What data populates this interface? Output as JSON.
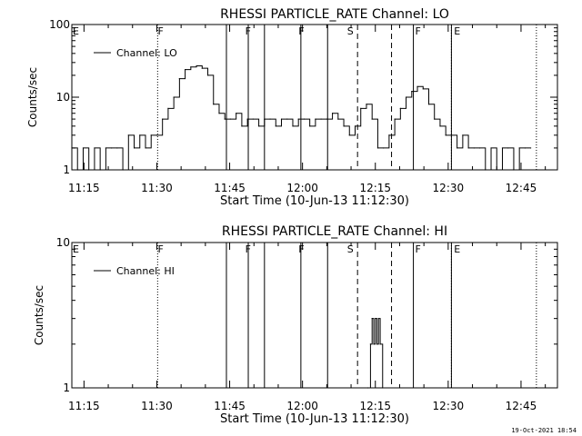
{
  "chart_data": [
    {
      "type": "line",
      "title": "RHESSI PARTICLE_RATE Channel: LO",
      "xlabel": "Start Time (10-Jun-13 11:12:30)",
      "ylabel": "Counts/sec",
      "yscale": "log",
      "ylim": [
        1,
        100
      ],
      "xlim": [
        "11:12:30",
        "12:52:30"
      ],
      "xticks": [
        "11:15",
        "11:30",
        "11:45",
        "12:00",
        "12:15",
        "12:30",
        "12:45"
      ],
      "yticks": [
        "1",
        "10",
        "100"
      ],
      "legend": {
        "entries": [
          "Channel: LO"
        ],
        "placement": "top-left"
      },
      "series": [
        {
          "name": "Channel: LO",
          "x": [
            "11:12:30",
            "11:13:40",
            "11:14:50",
            "11:16:00",
            "11:17:10",
            "11:18:20",
            "11:19:30",
            "11:20:40",
            "11:21:50",
            "11:23:00",
            "11:24:10",
            "11:25:20",
            "11:26:30",
            "11:27:40",
            "11:28:50",
            "11:30:00",
            "11:31:10",
            "11:32:20",
            "11:33:30",
            "11:34:40",
            "11:35:50",
            "11:37:00",
            "11:38:10",
            "11:39:20",
            "11:40:30",
            "11:41:40",
            "11:42:50",
            "11:44:00",
            "11:45:10",
            "11:46:20",
            "11:47:30",
            "11:48:40",
            "11:49:50",
            "11:51:00",
            "11:52:10",
            "11:53:20",
            "11:54:30",
            "11:55:40",
            "11:56:50",
            "11:58:00",
            "11:59:10",
            "12:00:20",
            "12:01:30",
            "12:02:40",
            "12:03:50",
            "12:05:00",
            "12:06:10",
            "12:07:20",
            "12:08:30",
            "12:09:40",
            "12:10:50",
            "12:12:00",
            "12:13:10",
            "12:14:20",
            "12:15:30",
            "12:16:40",
            "12:17:50",
            "12:19:00",
            "12:20:10",
            "12:21:20",
            "12:22:30",
            "12:23:40",
            "12:24:50",
            "12:26:00",
            "12:27:10",
            "12:28:20",
            "12:29:30",
            "12:30:40",
            "12:31:50",
            "12:33:00",
            "12:34:10",
            "12:35:20",
            "12:36:30",
            "12:37:40",
            "12:38:50",
            "12:40:00",
            "12:41:10",
            "12:42:20",
            "12:43:30",
            "12:44:40",
            "12:45:50",
            "12:47:00"
          ],
          "values": [
            2,
            1,
            2,
            1,
            2,
            1,
            2,
            2,
            2,
            1,
            3,
            2,
            3,
            2,
            3,
            3,
            5,
            7,
            10,
            18,
            24,
            26,
            27,
            25,
            20,
            8,
            6,
            5,
            5,
            6,
            4,
            5,
            5,
            4,
            5,
            5,
            4,
            5,
            5,
            4,
            5,
            5,
            4,
            5,
            5,
            5,
            6,
            5,
            4,
            3,
            4,
            7,
            8,
            5,
            2,
            2,
            3,
            5,
            7,
            10,
            12,
            14,
            13,
            8,
            5,
            4,
            3,
            3,
            2,
            3,
            2,
            2,
            2,
            1,
            2,
            1,
            2,
            2,
            1,
            2,
            2,
            2
          ]
        }
      ],
      "annotations": {
        "flag_letters": [
          "E",
          "F",
          "F",
          "F",
          "S",
          "F",
          "E"
        ],
        "flag_times": [
          "11:12:30",
          "11:30:00",
          "11:48:00",
          "11:59:00",
          "12:09:00",
          "12:23:00",
          "12:31:00"
        ],
        "solid_line_times": [
          "11:44:20",
          "11:48:50",
          "11:52:10",
          "11:59:40",
          "12:05:10",
          "12:22:50",
          "12:30:40"
        ],
        "dashed_line_times": [
          "12:11:20",
          "12:18:20"
        ],
        "dotted_line_times": [
          "11:30:10",
          "12:30:40",
          "12:48:10"
        ]
      }
    },
    {
      "type": "line",
      "title": "RHESSI PARTICLE_RATE Channel: HI",
      "xlabel": "Start Time (10-Jun-13 11:12:30)",
      "ylabel": "Counts/sec",
      "yscale": "log",
      "ylim": [
        1,
        10
      ],
      "xlim": [
        "11:12:30",
        "12:52:30"
      ],
      "xticks": [
        "11:15",
        "11:30",
        "11:45",
        "12:00",
        "12:15",
        "12:30",
        "12:45"
      ],
      "yticks": [
        "1",
        "10"
      ],
      "legend": {
        "entries": [
          "Channel: HI"
        ],
        "placement": "top-left"
      },
      "series": [
        {
          "name": "Channel: HI",
          "x": [
            "12:13:30",
            "12:14:00",
            "12:14:20",
            "12:14:40",
            "12:15:00",
            "12:15:20",
            "12:15:40",
            "12:16:00",
            "12:16:30"
          ],
          "values": [
            1,
            2,
            3,
            2,
            3,
            2,
            3,
            2,
            1
          ]
        }
      ],
      "annotations": {
        "flag_letters": [
          "E",
          "F",
          "F",
          "F",
          "S",
          "F",
          "E"
        ],
        "flag_times": [
          "11:12:30",
          "11:30:00",
          "11:48:00",
          "11:59:00",
          "12:09:00",
          "12:23:00",
          "12:31:00"
        ],
        "solid_line_times": [
          "11:44:20",
          "11:48:50",
          "11:52:10",
          "11:59:40",
          "12:05:10",
          "12:22:50",
          "12:30:40"
        ],
        "dashed_line_times": [
          "12:11:20",
          "12:18:20"
        ],
        "dotted_line_times": [
          "11:30:10",
          "12:30:40",
          "12:48:10"
        ]
      }
    }
  ],
  "footer": {
    "date": "19-Oct-2021 18:54"
  }
}
